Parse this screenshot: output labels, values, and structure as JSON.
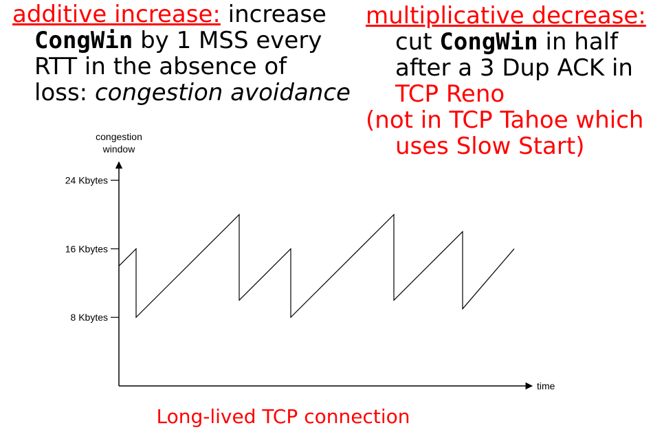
{
  "left_text": {
    "heading": "additive increase:",
    "line1_rest": " increase",
    "line2_code": "CongWin",
    "line2_rest": " by 1 MSS every",
    "line3": "RTT in the absence of",
    "line4_prefix": "loss: ",
    "line4_italic": "congestion avoidance"
  },
  "right_text": {
    "heading": "multiplicative decrease:",
    "line1_prefix": "cut ",
    "line1_code": "CongWin",
    "line1_rest": " in half",
    "line2": "after a 3 Dup ACK in",
    "line3": "TCP Reno",
    "line4": "(not in TCP Tahoe which",
    "line5": "uses Slow Start)"
  },
  "caption": "Long-lived TCP connection",
  "colors": {
    "accent": "#ff0000",
    "text": "#000000"
  },
  "chart_data": {
    "type": "line",
    "title": "",
    "ylabel_lines": [
      "congestion",
      "window"
    ],
    "xlabel": "time",
    "y_ticks": [
      {
        "value": 24,
        "label": "24 Kbytes"
      },
      {
        "value": 16,
        "label": "16 Kbytes"
      },
      {
        "value": 8,
        "label": "8 Kbytes"
      }
    ],
    "ylim": [
      0,
      27
    ],
    "xlim": [
      0,
      12
    ],
    "grid": false,
    "series": [
      {
        "x": [
          0,
          0.5,
          0.5,
          3.5,
          3.5,
          5,
          5,
          8,
          8,
          10,
          10,
          11.5
        ],
        "y": [
          14,
          16,
          8,
          20,
          10,
          16,
          8,
          20,
          10,
          18,
          9,
          16
        ]
      }
    ]
  }
}
